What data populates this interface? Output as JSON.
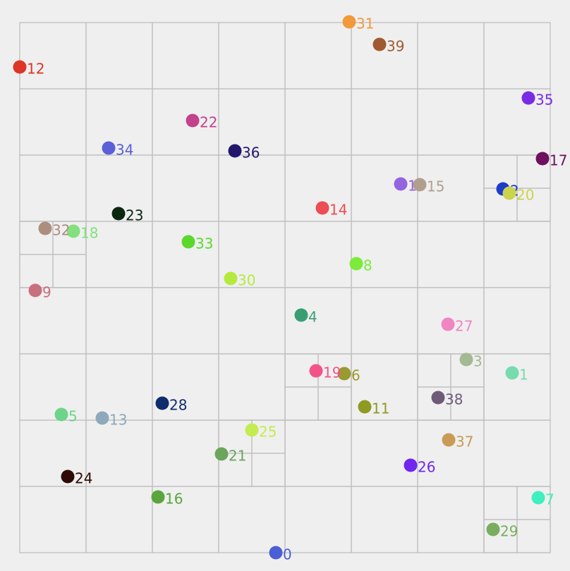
{
  "points": [
    {
      "label": "0",
      "color": "#4a5fd4"
    },
    {
      "label": "1",
      "color": "#77dbae"
    },
    {
      "label": "2",
      "color": "#1d3ccc"
    },
    {
      "label": "3",
      "color": "#a4b994"
    },
    {
      "label": "4",
      "color": "#3a9e72"
    },
    {
      "label": "5",
      "color": "#6ed48a"
    },
    {
      "label": "6",
      "color": "#999a2f"
    },
    {
      "label": "7",
      "color": "#3ef0bd"
    },
    {
      "label": "8",
      "color": "#7ceb3a"
    },
    {
      "label": "9",
      "color": "#c8707e"
    },
    {
      "label": "10",
      "color": "#9463e0"
    },
    {
      "label": "11",
      "color": "#8f9a23"
    },
    {
      "label": "12",
      "color": "#dd3526"
    },
    {
      "label": "13",
      "color": "#8ea9bb"
    },
    {
      "label": "14",
      "color": "#ec4e53"
    },
    {
      "label": "15",
      "color": "#b19f8e"
    },
    {
      "label": "16",
      "color": "#5aa53d"
    },
    {
      "label": "17",
      "color": "#6d1160"
    },
    {
      "label": "18",
      "color": "#84e07e"
    },
    {
      "label": "19",
      "color": "#f25389"
    },
    {
      "label": "20",
      "color": "#cbd44a"
    },
    {
      "label": "21",
      "color": "#6ba55c"
    },
    {
      "label": "22",
      "color": "#c4418c"
    },
    {
      "label": "23",
      "color": "#0a2810"
    },
    {
      "label": "24",
      "color": "#300b05"
    },
    {
      "label": "25",
      "color": "#c3ec50"
    },
    {
      "label": "26",
      "color": "#7127f0"
    },
    {
      "label": "27",
      "color": "#f086c1"
    },
    {
      "label": "28",
      "color": "#0f2d6c"
    },
    {
      "label": "29",
      "color": "#79ad5f"
    },
    {
      "label": "30",
      "color": "#b5ea3c"
    },
    {
      "label": "31",
      "color": "#f09a3c"
    },
    {
      "label": "32",
      "color": "#ab8e7e"
    },
    {
      "label": "33",
      "color": "#5cd82c"
    },
    {
      "label": "34",
      "color": "#5b5fd8"
    },
    {
      "label": "35",
      "color": "#7a2ce4"
    },
    {
      "label": "36",
      "color": "#23176d"
    },
    {
      "label": "37",
      "color": "#c99b56"
    },
    {
      "label": "38",
      "color": "#6f5a78"
    },
    {
      "label": "39",
      "color": "#a05a2f"
    }
  ]
}
